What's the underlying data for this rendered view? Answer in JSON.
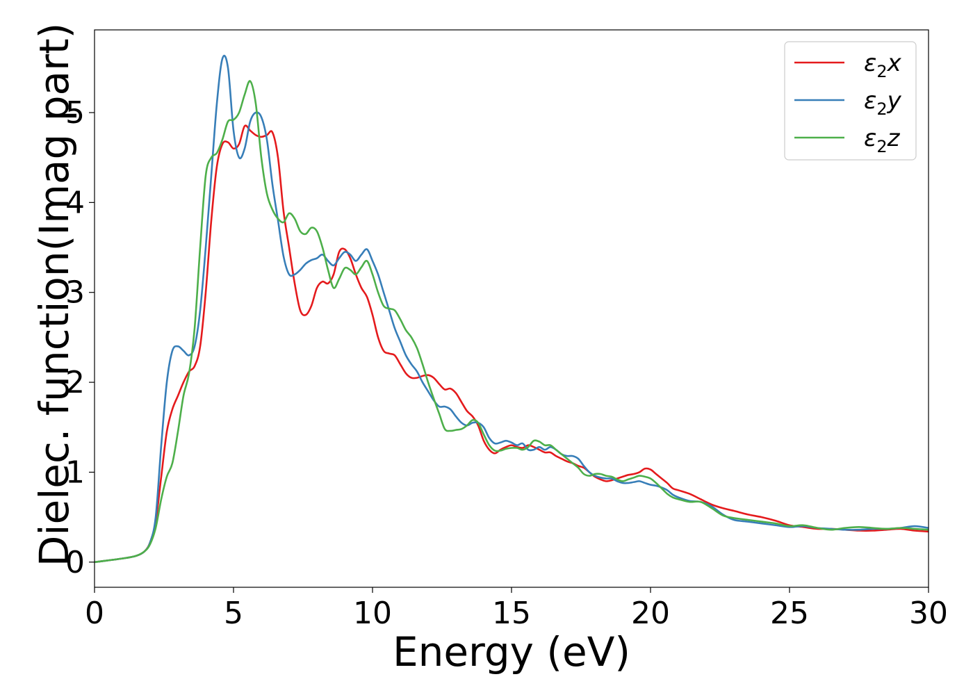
{
  "chart_data": {
    "type": "line",
    "xlabel": "Energy (eV)",
    "ylabel": "Dielec. function(Imag part)",
    "xlim": [
      0,
      30
    ],
    "ylim": [
      -0.28,
      5.92
    ],
    "xticks": [
      0,
      5,
      10,
      15,
      20,
      25,
      30
    ],
    "xtick_labels": [
      "0",
      "5",
      "10",
      "15",
      "20",
      "25",
      "30"
    ],
    "yticks": [
      0,
      1,
      2,
      3,
      4,
      5
    ],
    "ytick_labels": [
      "0",
      "1",
      "2",
      "3",
      "4",
      "5"
    ],
    "legend_position": "top-right",
    "series": [
      {
        "name": "ε2x",
        "name_base": "ε",
        "name_sub": "2",
        "name_suffix": "x",
        "color": "#e41a1c",
        "x": [
          0,
          1,
          1.5,
          1.8,
          2.0,
          2.2,
          2.4,
          2.6,
          2.8,
          3.0,
          3.2,
          3.4,
          3.6,
          3.8,
          4.0,
          4.2,
          4.4,
          4.6,
          4.8,
          5.0,
          5.2,
          5.4,
          5.6,
          5.8,
          6.0,
          6.2,
          6.4,
          6.6,
          6.8,
          7.0,
          7.2,
          7.4,
          7.6,
          7.8,
          8.0,
          8.2,
          8.4,
          8.6,
          8.8,
          9.0,
          9.2,
          9.4,
          9.6,
          9.8,
          10.0,
          10.2,
          10.4,
          10.6,
          10.8,
          11.0,
          11.2,
          11.4,
          11.6,
          11.8,
          12.0,
          12.2,
          12.4,
          12.6,
          12.8,
          13.0,
          13.2,
          13.4,
          13.6,
          13.8,
          14.0,
          14.2,
          14.4,
          14.6,
          14.8,
          15.0,
          15.2,
          15.4,
          15.6,
          15.8,
          16.0,
          16.2,
          16.4,
          16.6,
          16.8,
          17.0,
          17.2,
          17.4,
          17.6,
          17.8,
          18.0,
          18.2,
          18.4,
          18.6,
          18.8,
          19.0,
          19.2,
          19.4,
          19.6,
          19.8,
          20.0,
          20.2,
          20.4,
          20.6,
          20.8,
          21.0,
          21.4,
          21.8,
          22.2,
          22.6,
          23.0,
          23.5,
          24.0,
          24.5,
          25.0,
          25.5,
          26.0,
          26.5,
          27.0,
          27.5,
          28.0,
          28.5,
          29.0,
          29.5,
          30.0
        ],
        "y": [
          0.0,
          0.04,
          0.07,
          0.12,
          0.22,
          0.45,
          0.95,
          1.45,
          1.7,
          1.85,
          2.0,
          2.12,
          2.18,
          2.4,
          3.0,
          3.8,
          4.4,
          4.65,
          4.67,
          4.6,
          4.65,
          4.85,
          4.8,
          4.75,
          4.73,
          4.75,
          4.78,
          4.5,
          3.9,
          3.5,
          3.1,
          2.8,
          2.75,
          2.85,
          3.05,
          3.12,
          3.1,
          3.2,
          3.45,
          3.48,
          3.38,
          3.2,
          3.05,
          2.95,
          2.75,
          2.5,
          2.35,
          2.32,
          2.3,
          2.2,
          2.1,
          2.05,
          2.05,
          2.07,
          2.08,
          2.05,
          1.98,
          1.92,
          1.93,
          1.88,
          1.78,
          1.68,
          1.62,
          1.52,
          1.35,
          1.25,
          1.21,
          1.25,
          1.28,
          1.3,
          1.28,
          1.27,
          1.3,
          1.28,
          1.25,
          1.22,
          1.22,
          1.18,
          1.15,
          1.12,
          1.1,
          1.07,
          1.05,
          1.0,
          0.95,
          0.92,
          0.9,
          0.91,
          0.93,
          0.95,
          0.97,
          0.98,
          1.0,
          1.04,
          1.03,
          0.98,
          0.93,
          0.88,
          0.82,
          0.8,
          0.76,
          0.7,
          0.64,
          0.6,
          0.57,
          0.53,
          0.5,
          0.46,
          0.41,
          0.39,
          0.37,
          0.37,
          0.36,
          0.35,
          0.35,
          0.36,
          0.37,
          0.35,
          0.34
        ]
      },
      {
        "name": "ε2y",
        "name_base": "ε",
        "name_sub": "2",
        "name_suffix": "y",
        "color": "#377eb8",
        "x": [
          0,
          1,
          1.5,
          1.8,
          2.0,
          2.2,
          2.4,
          2.6,
          2.8,
          3.0,
          3.2,
          3.4,
          3.6,
          3.8,
          4.0,
          4.2,
          4.4,
          4.6,
          4.8,
          5.0,
          5.2,
          5.4,
          5.6,
          5.8,
          6.0,
          6.2,
          6.4,
          6.6,
          6.8,
          7.0,
          7.2,
          7.4,
          7.6,
          7.8,
          8.0,
          8.2,
          8.4,
          8.6,
          8.8,
          9.0,
          9.2,
          9.4,
          9.6,
          9.8,
          10.0,
          10.2,
          10.4,
          10.6,
          10.8,
          11.0,
          11.2,
          11.4,
          11.6,
          11.8,
          12.0,
          12.2,
          12.4,
          12.6,
          12.8,
          13.0,
          13.2,
          13.4,
          13.6,
          13.8,
          14.0,
          14.2,
          14.4,
          14.6,
          14.8,
          15.0,
          15.2,
          15.4,
          15.6,
          15.8,
          16.0,
          16.2,
          16.4,
          16.6,
          16.8,
          17.0,
          17.2,
          17.4,
          17.6,
          17.8,
          18.0,
          18.2,
          18.4,
          18.6,
          18.8,
          19.0,
          19.2,
          19.4,
          19.6,
          19.8,
          20.0,
          20.2,
          20.4,
          20.6,
          20.8,
          21.0,
          21.4,
          21.8,
          22.2,
          22.6,
          23.0,
          23.5,
          24.0,
          24.5,
          25.0,
          25.5,
          26.0,
          26.5,
          27.0,
          27.5,
          28.0,
          28.5,
          29.0,
          29.5,
          30.0
        ],
        "y": [
          0.0,
          0.04,
          0.07,
          0.12,
          0.22,
          0.5,
          1.3,
          2.0,
          2.35,
          2.4,
          2.35,
          2.3,
          2.4,
          2.8,
          3.5,
          4.3,
          5.1,
          5.6,
          5.5,
          4.8,
          4.5,
          4.6,
          4.9,
          5.0,
          4.95,
          4.7,
          4.2,
          3.8,
          3.4,
          3.2,
          3.2,
          3.25,
          3.32,
          3.36,
          3.38,
          3.42,
          3.35,
          3.3,
          3.38,
          3.45,
          3.42,
          3.35,
          3.42,
          3.48,
          3.35,
          3.2,
          3.0,
          2.8,
          2.6,
          2.45,
          2.3,
          2.2,
          2.12,
          2.0,
          1.9,
          1.8,
          1.73,
          1.73,
          1.7,
          1.62,
          1.55,
          1.52,
          1.55,
          1.55,
          1.5,
          1.38,
          1.32,
          1.33,
          1.35,
          1.33,
          1.3,
          1.32,
          1.25,
          1.25,
          1.28,
          1.25,
          1.28,
          1.25,
          1.2,
          1.18,
          1.18,
          1.15,
          1.07,
          1.0,
          0.96,
          0.94,
          0.93,
          0.93,
          0.9,
          0.88,
          0.88,
          0.89,
          0.9,
          0.88,
          0.86,
          0.85,
          0.83,
          0.8,
          0.75,
          0.72,
          0.68,
          0.67,
          0.62,
          0.53,
          0.47,
          0.45,
          0.43,
          0.41,
          0.39,
          0.4,
          0.38,
          0.37,
          0.36,
          0.36,
          0.37,
          0.37,
          0.38,
          0.4,
          0.38
        ]
      },
      {
        "name": "ε2z",
        "name_base": "ε",
        "name_sub": "2",
        "name_suffix": "z",
        "color": "#4daf4a",
        "x": [
          0,
          1,
          1.5,
          1.8,
          2.0,
          2.2,
          2.4,
          2.6,
          2.8,
          3.0,
          3.2,
          3.4,
          3.6,
          3.8,
          4.0,
          4.2,
          4.4,
          4.6,
          4.8,
          5.0,
          5.2,
          5.4,
          5.6,
          5.8,
          6.0,
          6.2,
          6.4,
          6.6,
          6.8,
          7.0,
          7.2,
          7.4,
          7.6,
          7.8,
          8.0,
          8.2,
          8.4,
          8.6,
          8.8,
          9.0,
          9.2,
          9.4,
          9.6,
          9.8,
          10.0,
          10.2,
          10.4,
          10.6,
          10.8,
          11.0,
          11.2,
          11.4,
          11.6,
          11.8,
          12.0,
          12.2,
          12.4,
          12.6,
          12.8,
          13.0,
          13.2,
          13.4,
          13.6,
          13.8,
          14.0,
          14.2,
          14.4,
          14.6,
          14.8,
          15.0,
          15.2,
          15.4,
          15.6,
          15.8,
          16.0,
          16.2,
          16.4,
          16.6,
          16.8,
          17.0,
          17.2,
          17.4,
          17.6,
          17.8,
          18.0,
          18.2,
          18.4,
          18.6,
          18.8,
          19.0,
          19.2,
          19.4,
          19.6,
          19.8,
          20.0,
          20.2,
          20.4,
          20.6,
          20.8,
          21.0,
          21.4,
          21.8,
          22.2,
          22.6,
          23.0,
          23.5,
          24.0,
          24.5,
          25.0,
          25.5,
          26.0,
          26.5,
          27.0,
          27.5,
          28.0,
          28.5,
          29.0,
          29.5,
          30.0
        ],
        "y": [
          0.0,
          0.04,
          0.07,
          0.12,
          0.2,
          0.38,
          0.7,
          0.95,
          1.1,
          1.45,
          1.85,
          2.1,
          2.6,
          3.5,
          4.3,
          4.5,
          4.55,
          4.7,
          4.9,
          4.92,
          5.0,
          5.2,
          5.35,
          5.1,
          4.5,
          4.1,
          3.92,
          3.82,
          3.78,
          3.88,
          3.82,
          3.68,
          3.65,
          3.72,
          3.68,
          3.5,
          3.25,
          3.05,
          3.15,
          3.27,
          3.25,
          3.2,
          3.28,
          3.35,
          3.2,
          3.0,
          2.85,
          2.82,
          2.8,
          2.7,
          2.58,
          2.5,
          2.38,
          2.2,
          2.0,
          1.82,
          1.65,
          1.48,
          1.46,
          1.47,
          1.48,
          1.52,
          1.58,
          1.55,
          1.42,
          1.3,
          1.24,
          1.24,
          1.26,
          1.27,
          1.27,
          1.25,
          1.28,
          1.35,
          1.34,
          1.3,
          1.3,
          1.25,
          1.2,
          1.15,
          1.1,
          1.05,
          0.98,
          0.96,
          0.98,
          0.98,
          0.96,
          0.95,
          0.92,
          0.9,
          0.92,
          0.94,
          0.96,
          0.95,
          0.93,
          0.88,
          0.82,
          0.76,
          0.72,
          0.7,
          0.67,
          0.67,
          0.6,
          0.52,
          0.49,
          0.47,
          0.45,
          0.43,
          0.4,
          0.41,
          0.38,
          0.36,
          0.38,
          0.39,
          0.38,
          0.37,
          0.38,
          0.37,
          0.36
        ]
      }
    ]
  }
}
